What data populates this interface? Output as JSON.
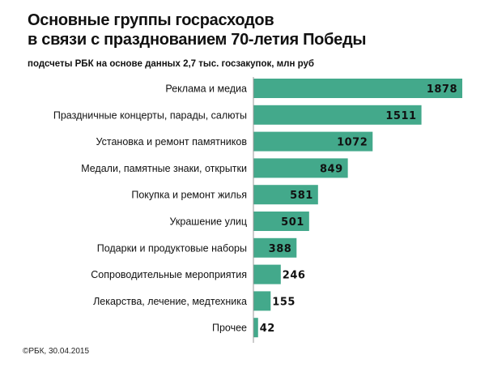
{
  "chart_data": {
    "type": "bar",
    "orientation": "horizontal",
    "title": "Основные группы госрасходов в связи с празднованием 70-летия Победы",
    "title_lines": [
      "Основные группы госрасходов",
      "в связи с празднованием 70-летия Победы"
    ],
    "subtitle": "подсчеты РБК на основе данных 2,7 тыс. госзакупок,  млн руб",
    "categories": [
      "Реклама и медиа",
      "Праздничные концерты, парады, салюты",
      "Установка и ремонт памятников",
      "Медали, памятные знаки, открытки",
      "Покупка и ремонт жилья",
      "Украшение улиц",
      "Подарки и продуктовые наборы",
      "Сопроводительные мероприятия",
      "Лекарства, лечение, медтехника",
      "Прочее"
    ],
    "values": [
      1878,
      1511,
      1072,
      849,
      581,
      501,
      388,
      246,
      155,
      42
    ],
    "xlim": [
      0,
      1878
    ],
    "grid": false,
    "bar_color": "#43a98b"
  },
  "footer": "©РБК, 30.04.2015"
}
